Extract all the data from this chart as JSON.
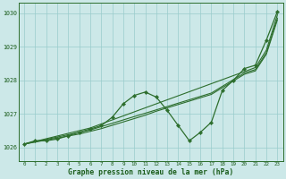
{
  "xlabel": "Graphe pression niveau de la mer (hPa)",
  "xlim": [
    -0.5,
    23.5
  ],
  "ylim": [
    1025.6,
    1030.3
  ],
  "yticks": [
    1026,
    1027,
    1028,
    1029,
    1030
  ],
  "xticks": [
    0,
    1,
    2,
    3,
    4,
    5,
    6,
    7,
    8,
    9,
    10,
    11,
    12,
    13,
    14,
    15,
    16,
    17,
    18,
    19,
    20,
    21,
    22,
    23
  ],
  "background_color": "#cce8e8",
  "grid_color": "#99cccc",
  "line_color": "#2d6e2d",
  "series_detail": [
    1026.1,
    1026.2,
    1026.2,
    1026.25,
    1026.35,
    1026.45,
    1026.55,
    1026.65,
    1026.9,
    1027.3,
    1027.55,
    1027.65,
    1027.5,
    1027.1,
    1026.65,
    1026.2,
    1026.45,
    1026.75,
    1027.7,
    1028.0,
    1028.35,
    1028.45,
    1029.2,
    1030.05
  ],
  "series_straight1": [
    1026.1,
    1026.18,
    1026.26,
    1026.34,
    1026.42,
    1026.5,
    1026.58,
    1026.7,
    1026.82,
    1026.94,
    1027.06,
    1027.18,
    1027.3,
    1027.42,
    1027.54,
    1027.66,
    1027.78,
    1027.9,
    1028.02,
    1028.14,
    1028.26,
    1028.38,
    1028.9,
    1029.95
  ],
  "series_straight2": [
    1026.1,
    1026.17,
    1026.24,
    1026.31,
    1026.38,
    1026.45,
    1026.52,
    1026.62,
    1026.72,
    1026.82,
    1026.92,
    1027.02,
    1027.12,
    1027.22,
    1027.32,
    1027.42,
    1027.52,
    1027.62,
    1027.82,
    1028.02,
    1028.22,
    1028.32,
    1028.82,
    1029.85
  ],
  "series_straight3": [
    1026.1,
    1026.16,
    1026.22,
    1026.28,
    1026.34,
    1026.4,
    1026.48,
    1026.56,
    1026.66,
    1026.76,
    1026.86,
    1026.96,
    1027.08,
    1027.18,
    1027.28,
    1027.38,
    1027.48,
    1027.58,
    1027.78,
    1027.98,
    1028.18,
    1028.28,
    1028.78,
    1029.8
  ]
}
